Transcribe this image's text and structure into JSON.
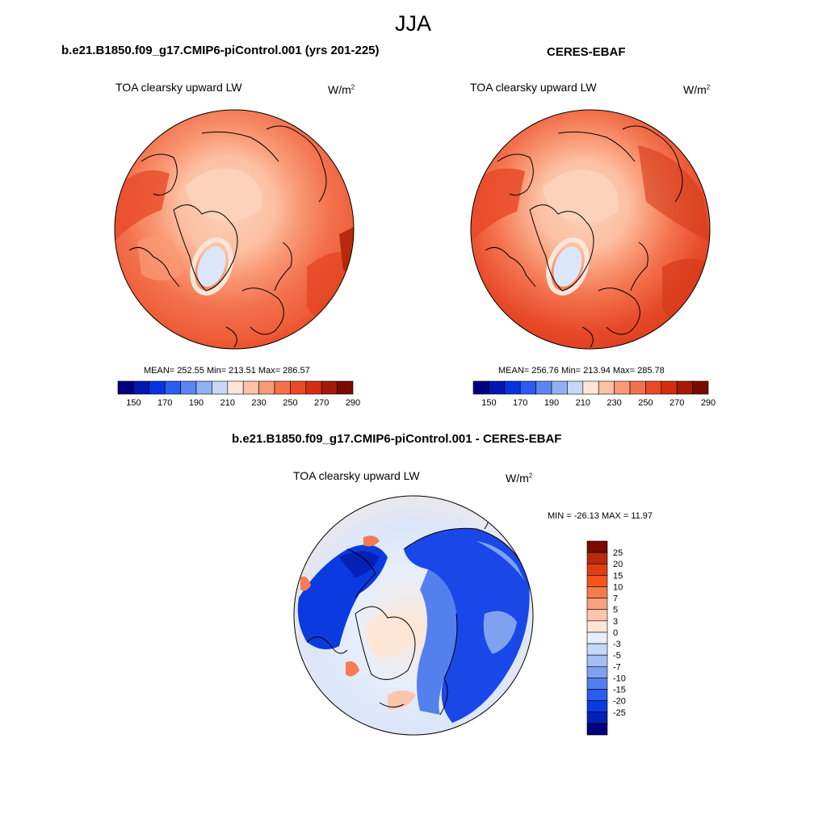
{
  "figure": {
    "title": "JJA",
    "units_base": "W/m",
    "units_exp": "2",
    "panels": [
      {
        "title": "b.e21.B1850.f09_g17.CMIP6-piControl.001 (yrs 201-225)",
        "variable": "TOA clearsky upward LW",
        "stats": "MEAN= 252.55  Min= 213.51  Max= 286.57"
      },
      {
        "title": "CERES-EBAF",
        "variable": "TOA clearsky upward LW",
        "stats": "MEAN= 256.76  Min= 213.94  Max= 285.78"
      },
      {
        "title": "b.e21.B1850.f09_g17.CMIP6-piControl.001 - CERES-EBAF",
        "variable": "TOA clearsky upward LW",
        "stats": "MIN = -26.13 MAX =  11.97"
      }
    ],
    "abs_colorbar": {
      "colors": [
        "#00007f",
        "#0018b0",
        "#0732e0",
        "#2a5cf0",
        "#5a86f0",
        "#8fb0f2",
        "#c6d8f5",
        "#fde6d8",
        "#fcc2a6",
        "#f99a76",
        "#f3714d",
        "#e84a28",
        "#d22e10",
        "#a41a06",
        "#7a0a02"
      ],
      "labels": [
        "150",
        "170",
        "190",
        "210",
        "230",
        "250",
        "270",
        "290"
      ]
    },
    "diff_colorbar": {
      "colors": [
        "#7a0a02",
        "#b82a0b",
        "#e23c12",
        "#f5541d",
        "#f77b4f",
        "#f9a27f",
        "#fcc6ad",
        "#fde6d6",
        "#e7eefb",
        "#c6d8f5",
        "#a4c0f3",
        "#7ea2f0",
        "#5480ee",
        "#2a5cf0",
        "#0a3ae0",
        "#0520b5",
        "#00007f"
      ],
      "labels": [
        "25",
        "20",
        "15",
        "10",
        "7",
        "5",
        "3",
        "0",
        "-3",
        "-5",
        "-7",
        "-10",
        "-15",
        "-20",
        "-25"
      ]
    }
  }
}
